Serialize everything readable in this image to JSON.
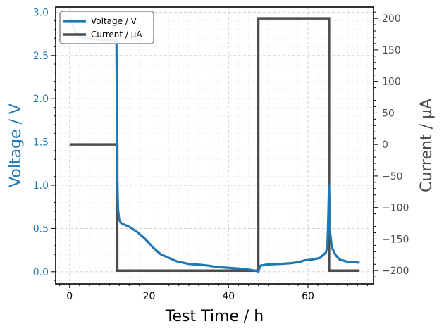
{
  "chart_data": {
    "type": "line",
    "xlabel": "Test Time / h",
    "ylabel_left": "Voltage / V",
    "ylabel_right": "Current / µA",
    "xlim": [
      -3.5,
      76.5
    ],
    "ylim_left": [
      -0.14,
      3.06
    ],
    "ylim_right": [
      -221,
      218
    ],
    "x_ticks": [
      0,
      20,
      40,
      60
    ],
    "y_left_ticks": [
      0.0,
      0.5,
      1.0,
      1.5,
      2.0,
      2.5,
      3.0
    ],
    "y_left_tick_labels": [
      "0.0",
      "0.5",
      "1.0",
      "1.5",
      "2.0",
      "2.5",
      "3.0"
    ],
    "y_right_ticks": [
      -200,
      -150,
      -100,
      -50,
      0,
      50,
      100,
      150,
      200
    ],
    "y_right_tick_labels": [
      "−200",
      "−150",
      "−100",
      "−50",
      "0",
      "50",
      "100",
      "150",
      "200"
    ],
    "grid": true,
    "legend_position": "top-left",
    "colors": {
      "voltage": "#1f77b4",
      "current": "#4d4d4d",
      "grid_major": "#cccccc",
      "grid_minor": "#e8e8e8"
    },
    "series": [
      {
        "name": "Voltage / V",
        "axis": "left",
        "x": [
          0,
          1,
          2,
          3,
          5,
          8,
          11,
          11.8,
          12.0,
          12.2,
          12.5,
          13,
          15,
          17,
          19,
          21,
          23,
          25,
          27,
          30,
          33,
          35,
          37,
          40,
          43,
          45,
          47,
          47.5,
          48,
          50,
          53,
          56,
          58,
          59,
          61,
          63,
          64,
          64.5,
          64.9,
          65.1,
          65.3,
          65.6,
          66,
          67,
          68,
          70,
          73
        ],
        "y": [
          2.95,
          2.82,
          2.74,
          2.71,
          2.69,
          2.68,
          2.675,
          2.67,
          1.1,
          0.72,
          0.6,
          0.56,
          0.52,
          0.46,
          0.38,
          0.28,
          0.2,
          0.16,
          0.12,
          0.09,
          0.08,
          0.07,
          0.055,
          0.045,
          0.035,
          0.025,
          0.01,
          0.0,
          0.07,
          0.085,
          0.09,
          0.1,
          0.115,
          0.13,
          0.14,
          0.16,
          0.2,
          0.22,
          0.3,
          0.6,
          1.0,
          0.45,
          0.28,
          0.19,
          0.14,
          0.115,
          0.105
        ]
      },
      {
        "name": "Current / µA",
        "axis": "right",
        "x": [
          0,
          12,
          12,
          47.5,
          47.5,
          65.3,
          65.3,
          73
        ],
        "y": [
          0,
          0,
          -200,
          -200,
          200,
          200,
          -200,
          -200
        ]
      }
    ]
  }
}
